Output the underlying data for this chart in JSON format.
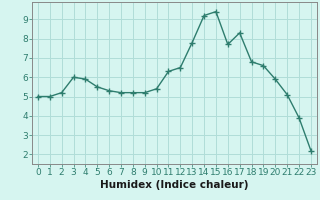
{
  "x": [
    0,
    1,
    2,
    3,
    4,
    5,
    6,
    7,
    8,
    9,
    10,
    11,
    12,
    13,
    14,
    15,
    16,
    17,
    18,
    19,
    20,
    21,
    22,
    23
  ],
  "y": [
    5.0,
    5.0,
    5.2,
    6.0,
    5.9,
    5.5,
    5.3,
    5.2,
    5.2,
    5.2,
    5.4,
    6.3,
    6.5,
    7.8,
    9.2,
    9.4,
    7.7,
    8.3,
    6.8,
    6.6,
    5.9,
    5.1,
    3.9,
    2.2
  ],
  "line_color": "#2e7d6e",
  "bg_color": "#d6f5f0",
  "grid_color": "#b0ddd8",
  "xlabel": "Humidex (Indice chaleur)",
  "xlim": [
    -0.5,
    23.5
  ],
  "ylim": [
    1.5,
    9.9
  ],
  "yticks": [
    2,
    3,
    4,
    5,
    6,
    7,
    8,
    9
  ],
  "xticks": [
    0,
    1,
    2,
    3,
    4,
    5,
    6,
    7,
    8,
    9,
    10,
    11,
    12,
    13,
    14,
    15,
    16,
    17,
    18,
    19,
    20,
    21,
    22,
    23
  ],
  "xtick_labels": [
    "0",
    "1",
    "2",
    "3",
    "4",
    "5",
    "6",
    "7",
    "8",
    "9",
    "10",
    "11",
    "12",
    "13",
    "14",
    "15",
    "16",
    "17",
    "18",
    "19",
    "20",
    "21",
    "22",
    "23"
  ],
  "marker": "+",
  "markersize": 4,
  "linewidth": 1.0,
  "label_fontsize": 7.5,
  "tick_fontsize": 6.5
}
